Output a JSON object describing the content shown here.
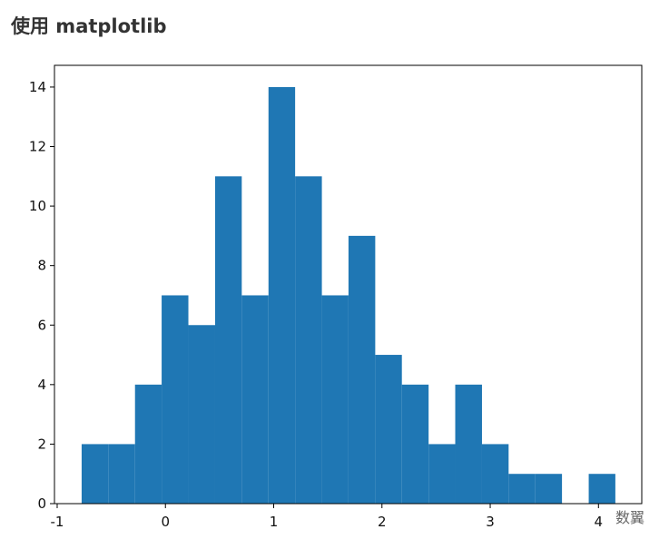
{
  "page_title": "使用 matplotlib",
  "watermark": "数翼",
  "chart_data": {
    "type": "histogram",
    "bins": [
      -0.774,
      -0.528,
      -0.281,
      -0.035,
      0.212,
      0.459,
      0.705,
      0.952,
      1.198,
      1.445,
      1.691,
      1.938,
      2.184,
      2.431,
      2.677,
      2.924,
      3.17,
      3.417,
      3.663,
      3.91,
      4.156
    ],
    "values": [
      2,
      2,
      4,
      7,
      6,
      11,
      7,
      14,
      11,
      7,
      9,
      5,
      4,
      2,
      4,
      2,
      1,
      1,
      0,
      1
    ],
    "color": "#1f77b4",
    "xlim": [
      -1.025,
      4.4
    ],
    "xticks": [
      -1,
      0,
      1,
      2,
      3,
      4
    ],
    "ylim": [
      0,
      14.73
    ],
    "yticks": [
      0,
      2,
      4,
      6,
      8,
      10,
      12,
      14
    ]
  }
}
